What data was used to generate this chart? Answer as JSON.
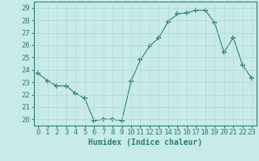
{
  "xlabel": "Humidex (Indice chaleur)",
  "x": [
    0,
    1,
    2,
    3,
    4,
    5,
    6,
    7,
    8,
    9,
    10,
    11,
    12,
    13,
    14,
    15,
    16,
    17,
    18,
    19,
    20,
    21,
    22,
    23
  ],
  "y": [
    23.7,
    23.1,
    22.7,
    22.7,
    22.1,
    21.7,
    19.9,
    20.0,
    20.0,
    19.9,
    23.1,
    24.8,
    25.9,
    26.6,
    27.9,
    28.5,
    28.6,
    28.8,
    28.8,
    27.8,
    25.4,
    26.6,
    24.4,
    23.3
  ],
  "line_color": "#2e7d6e",
  "marker": "+",
  "marker_size": 4,
  "background_color": "#c8ebe8",
  "grid_color": "#b0d8d4",
  "ylim": [
    19.5,
    29.5
  ],
  "yticks": [
    20,
    21,
    22,
    23,
    24,
    25,
    26,
    27,
    28,
    29
  ],
  "xtick_labels": [
    "0",
    "1",
    "2",
    "3",
    "4",
    "5",
    "6",
    "7",
    "8",
    "9",
    "10",
    "11",
    "12",
    "13",
    "14",
    "15",
    "16",
    "17",
    "18",
    "19",
    "20",
    "21",
    "22",
    "23"
  ],
  "tick_color": "#2e7d6e",
  "label_fontsize": 7,
  "tick_fontsize": 6.5
}
